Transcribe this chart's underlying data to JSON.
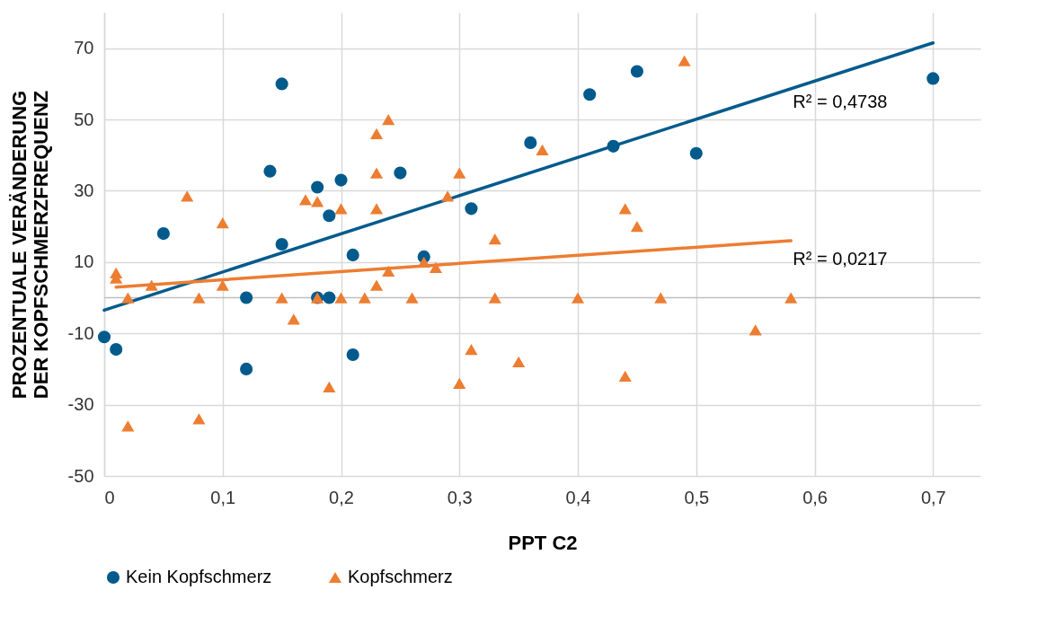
{
  "chart_data": {
    "type": "scatter",
    "xlabel": "PPT C2",
    "ylabel": "PROZENTUALE VERÄNDERUNG\nDER KOPFSCHMERZFREQUENZ",
    "xlim": [
      0,
      0.74
    ],
    "ylim": [
      -50,
      80
    ],
    "xticks": [
      0,
      {
        "value": 0.1,
        "label": "0,1"
      },
      {
        "value": 0.2,
        "label": "0,2"
      },
      {
        "value": 0.3,
        "label": "0,3"
      },
      {
        "value": 0.4,
        "label": "0,4"
      },
      {
        "value": 0.5,
        "label": "0,5"
      },
      {
        "value": 0.6,
        "label": "0,6"
      },
      {
        "value": 0.7,
        "label": "0,7"
      }
    ],
    "yticks": [
      -50,
      -30,
      -10,
      10,
      30,
      50,
      70
    ],
    "grid": true,
    "legend": "bottom",
    "ref_lines": [
      {
        "axis": "y",
        "value": 0,
        "color": "#bfbfbf"
      }
    ],
    "annotations": [
      "R² = 0,4738",
      "R² = 0,0217"
    ],
    "series": [
      {
        "name": "Kein Kopfschmerz",
        "type": "scatter",
        "marker": "circle",
        "color": "#005a8c",
        "x": [
          0,
          0.01,
          0.05,
          0.12,
          0.12,
          0.14,
          0.15,
          0.15,
          0.18,
          0.18,
          0.19,
          0.19,
          0.2,
          0.21,
          0.21,
          0.25,
          0.27,
          0.31,
          0.36,
          0.41,
          0.43,
          0.45,
          0.5,
          0.7
        ],
        "values": [
          -11,
          -14.5,
          18,
          0,
          -20,
          35.5,
          60,
          15,
          31,
          0,
          23,
          0,
          33,
          12,
          -16,
          35,
          11.5,
          25,
          43.5,
          57,
          42.5,
          63.5,
          40.5,
          61.5
        ]
      },
      {
        "name": "Kopfschmerz",
        "type": "scatter",
        "marker": "triangle",
        "color": "#ed7d31",
        "x": [
          0.01,
          0.01,
          0.02,
          0.02,
          0.04,
          0.07,
          0.08,
          0.08,
          0.1,
          0.1,
          0.15,
          0.16,
          0.17,
          0.18,
          0.18,
          0.19,
          0.2,
          0.2,
          0.22,
          0.23,
          0.23,
          0.23,
          0.23,
          0.24,
          0.24,
          0.26,
          0.27,
          0.28,
          0.29,
          0.3,
          0.3,
          0.31,
          0.33,
          0.33,
          0.35,
          0.37,
          0.4,
          0.44,
          0.44,
          0.45,
          0.47,
          0.49,
          0.55,
          0.58
        ],
        "values": [
          7,
          5.5,
          0,
          -36,
          3.5,
          28.5,
          0,
          -34,
          21,
          3.5,
          0,
          -6,
          27.5,
          27,
          0,
          -25,
          25,
          0,
          0,
          46,
          35,
          25,
          3.5,
          50,
          7.5,
          0,
          10,
          8.5,
          28.5,
          35,
          -24,
          -14.5,
          16.5,
          0,
          -18,
          41.5,
          0,
          25,
          -22,
          20,
          0,
          66.5,
          -9,
          0
        ]
      },
      {
        "type": "line",
        "color": "#005a8c",
        "x": [
          0,
          0.7
        ],
        "values": [
          -3.5,
          71.5
        ]
      },
      {
        "type": "line",
        "color": "#ed7d31",
        "x": [
          0.01,
          0.58
        ],
        "values": [
          3,
          16
        ]
      }
    ]
  }
}
